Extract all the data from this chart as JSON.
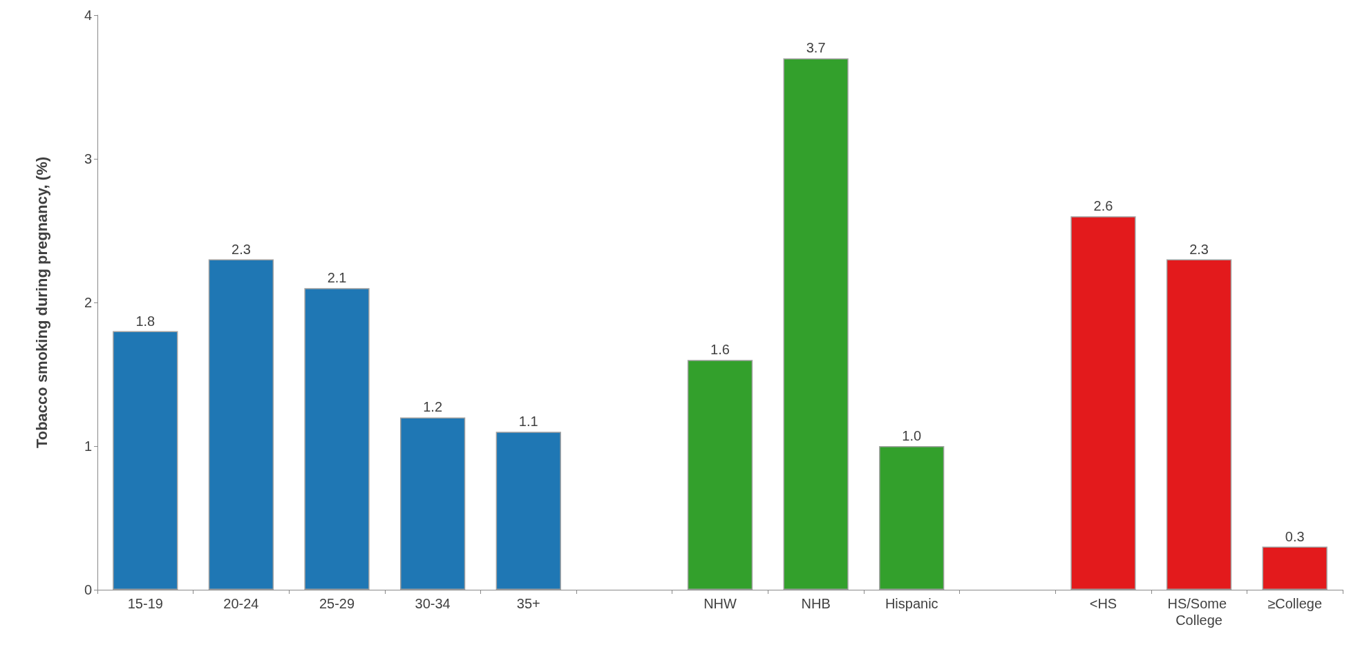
{
  "chart_data": {
    "type": "bar",
    "ylabel": "Tobacco smoking during pregnancy, (%)",
    "categories": [
      "15-19",
      "20-24",
      "25-29",
      "30-34",
      "35+",
      null,
      "NHW",
      "NHB",
      "Hispanic",
      null,
      "<HS",
      "HS/Some College",
      "≥College"
    ],
    "values": [
      1.8,
      2.3,
      2.1,
      1.2,
      1.1,
      null,
      1.6,
      3.7,
      1.0,
      null,
      2.6,
      2.3,
      0.3
    ],
    "colors": [
      "#1f77b4",
      "#1f77b4",
      "#1f77b4",
      "#1f77b4",
      "#1f77b4",
      null,
      "#33a02c",
      "#33a02c",
      "#33a02c",
      null,
      "#e31a1c",
      "#e31a1c",
      "#e31a1c"
    ],
    "value_labels": [
      "1.8",
      "2.3",
      "2.1",
      "1.2",
      "1.1",
      null,
      "1.6",
      "3.7",
      "1.0",
      null,
      "2.6",
      "2.3",
      "0.3"
    ],
    "ylim": [
      0,
      4
    ],
    "yticks": [
      0,
      1,
      2,
      3,
      4
    ],
    "grid": false
  }
}
